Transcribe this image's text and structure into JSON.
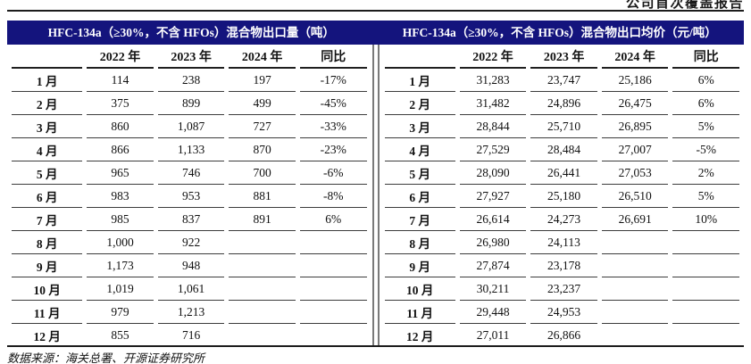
{
  "page_header": "公司首次覆盖报告",
  "source_note": "数据来源：海关总署、开源证券研究所",
  "colors": {
    "title_bar_bg": "#14147d",
    "title_bar_text": "#ffffff",
    "grid_line": "#3c3c3c",
    "divider_line": "#7a7a7a",
    "rule_line": "#1c1c1c"
  },
  "tables": [
    {
      "title": "HFC-134a（≥30%，不含 HFOs）混合物出口量（吨）",
      "columns": [
        "",
        "2022 年",
        "2023 年",
        "2024 年",
        "同比"
      ],
      "rows": [
        [
          "1 月",
          "114",
          "238",
          "197",
          "-17%"
        ],
        [
          "2 月",
          "375",
          "899",
          "499",
          "-45%"
        ],
        [
          "3 月",
          "860",
          "1,087",
          "727",
          "-33%"
        ],
        [
          "4 月",
          "866",
          "1,133",
          "870",
          "-23%"
        ],
        [
          "5 月",
          "965",
          "746",
          "700",
          "-6%"
        ],
        [
          "6 月",
          "983",
          "953",
          "881",
          "-8%"
        ],
        [
          "7 月",
          "985",
          "837",
          "891",
          "6%"
        ],
        [
          "8 月",
          "1,000",
          "922",
          "",
          ""
        ],
        [
          "9 月",
          "1,173",
          "948",
          "",
          ""
        ],
        [
          "10 月",
          "1,019",
          "1,061",
          "",
          ""
        ],
        [
          "11 月",
          "979",
          "1,213",
          "",
          ""
        ],
        [
          "12 月",
          "855",
          "716",
          "",
          ""
        ]
      ]
    },
    {
      "title": "HFC-134a（≥30%，不含 HFOs）混合物出口均价（元/吨）",
      "columns": [
        "",
        "2022 年",
        "2023 年",
        "2024 年",
        "同比"
      ],
      "rows": [
        [
          "1 月",
          "31,283",
          "23,747",
          "25,186",
          "6%"
        ],
        [
          "2 月",
          "31,482",
          "24,896",
          "26,475",
          "6%"
        ],
        [
          "3 月",
          "28,844",
          "25,710",
          "26,895",
          "5%"
        ],
        [
          "4 月",
          "27,529",
          "28,484",
          "27,007",
          "-5%"
        ],
        [
          "5 月",
          "28,090",
          "26,441",
          "27,053",
          "2%"
        ],
        [
          "6 月",
          "27,927",
          "25,180",
          "26,510",
          "5%"
        ],
        [
          "7 月",
          "26,614",
          "24,273",
          "26,691",
          "10%"
        ],
        [
          "8 月",
          "26,980",
          "24,113",
          "",
          ""
        ],
        [
          "9 月",
          "27,874",
          "23,178",
          "",
          ""
        ],
        [
          "10 月",
          "30,211",
          "23,237",
          "",
          ""
        ],
        [
          "11 月",
          "29,448",
          "24,953",
          "",
          ""
        ],
        [
          "12 月",
          "27,011",
          "26,866",
          "",
          ""
        ]
      ]
    }
  ]
}
